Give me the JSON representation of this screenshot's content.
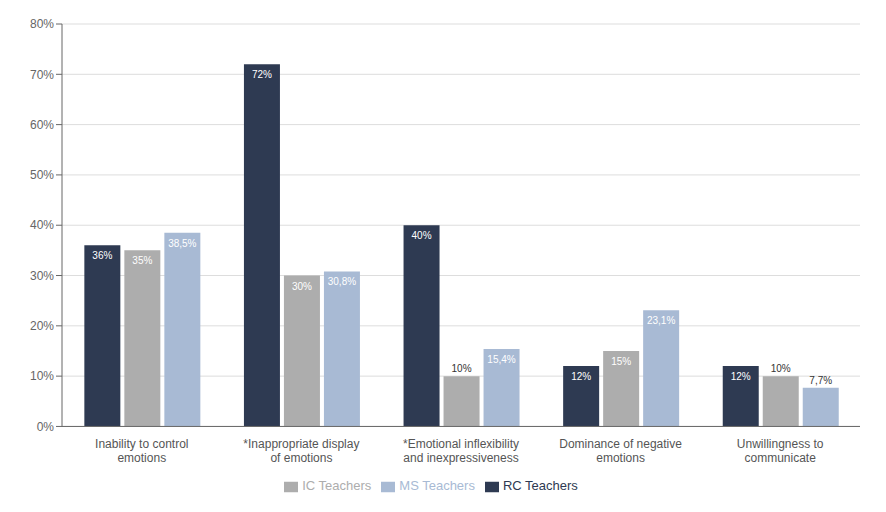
{
  "chart_data": {
    "type": "bar",
    "categories": [
      "Inability to control\nemotions",
      "*Inappropriate display\nof emotions",
      "*Emotional inflexibility\nand inexpressiveness",
      "Dominance of negative\nemotions",
      "Unwillingness to\ncommunicate"
    ],
    "series": [
      {
        "name": "RC Teachers",
        "color": "#2E3A52",
        "values": [
          36,
          72,
          40,
          12,
          12
        ],
        "value_labels": [
          "36%",
          "72%",
          "40%",
          "12%",
          "12%"
        ]
      },
      {
        "name": "IC Teachers",
        "color": "#ADADAD",
        "values": [
          35,
          30,
          10,
          15,
          10
        ],
        "value_labels": [
          "35%",
          "30%",
          "10%",
          "15%",
          "10%"
        ]
      },
      {
        "name": "MS Teachers",
        "color": "#A8BAD4",
        "values": [
          38.5,
          30.8,
          15.4,
          23.1,
          7.7
        ],
        "value_labels": [
          "38,5%",
          "30,8%",
          "15,4%",
          "23,1%",
          "7,7%"
        ]
      }
    ],
    "ylim": [
      0,
      80
    ],
    "yticks": [
      {
        "value": 0,
        "label": "0%"
      },
      {
        "value": 10,
        "label": "10%"
      },
      {
        "value": 20,
        "label": "20%"
      },
      {
        "value": 30,
        "label": "30%"
      },
      {
        "value": 40,
        "label": "40%"
      },
      {
        "value": 50,
        "label": "50%"
      },
      {
        "value": 60,
        "label": "60%"
      },
      {
        "value": 70,
        "label": "70%"
      },
      {
        "value": 80,
        "label": "80%"
      }
    ],
    "grid": true,
    "legend": "bottom",
    "data_labels": true
  }
}
